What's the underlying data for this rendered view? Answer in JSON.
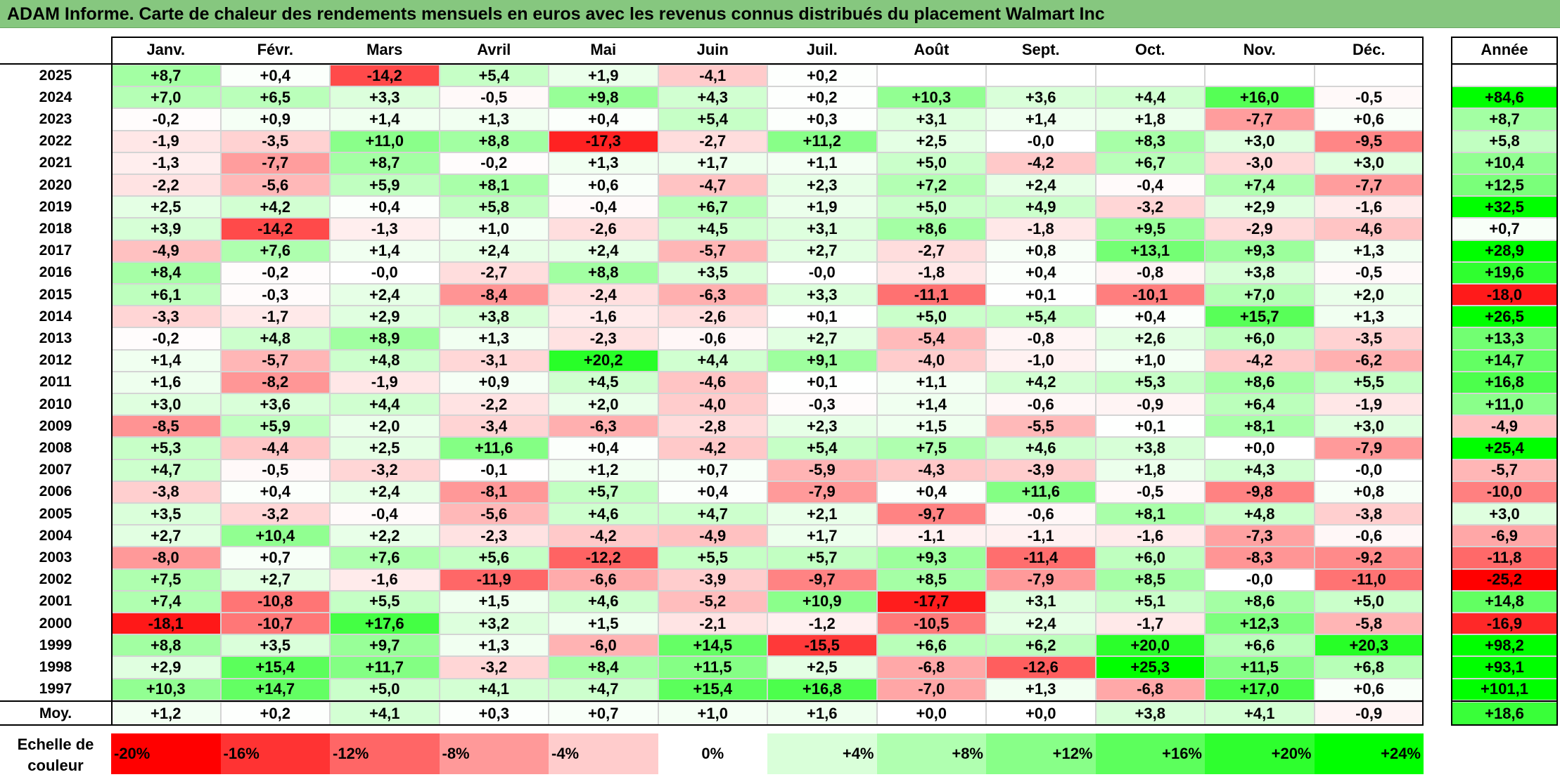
{
  "title": "ADAM Informe. Carte de chaleur des rendements mensuels en euros avec les revenus connus distribués du placement Walmart Inc",
  "chart_data": {
    "type": "heatmap",
    "title": "ADAM Informe. Carte de chaleur des rendements mensuels en euros avec les revenus connus distribués du placement Walmart Inc",
    "columns": [
      "Janv.",
      "Févr.",
      "Mars",
      "Avril",
      "Mai",
      "Juin",
      "Juil.",
      "Août",
      "Sept.",
      "Oct.",
      "Nov.",
      "Déc."
    ],
    "year_column": "Année",
    "rows": [
      {
        "label": "2025",
        "values": [
          "+8,7",
          "+0,4",
          "-14,2",
          "+5,4",
          "+1,9",
          "-4,1",
          "+0,2",
          "",
          "",
          "",
          "",
          ""
        ],
        "year": ""
      },
      {
        "label": "2024",
        "values": [
          "+7,0",
          "+6,5",
          "+3,3",
          "-0,5",
          "+9,8",
          "+4,3",
          "+0,2",
          "+10,3",
          "+3,6",
          "+4,4",
          "+16,0",
          "-0,5"
        ],
        "year": "+84,6"
      },
      {
        "label": "2023",
        "values": [
          "-0,2",
          "+0,9",
          "+1,4",
          "+1,3",
          "+0,4",
          "+5,4",
          "+0,3",
          "+3,1",
          "+1,4",
          "+1,8",
          "-7,7",
          "+0,6"
        ],
        "year": "+8,7"
      },
      {
        "label": "2022",
        "values": [
          "-1,9",
          "-3,5",
          "+11,0",
          "+8,8",
          "-17,3",
          "-2,7",
          "+11,2",
          "+2,5",
          "-0,0",
          "+8,3",
          "+3,0",
          "-9,5"
        ],
        "year": "+5,8"
      },
      {
        "label": "2021",
        "values": [
          "-1,3",
          "-7,7",
          "+8,7",
          "-0,2",
          "+1,3",
          "+1,7",
          "+1,1",
          "+5,0",
          "-4,2",
          "+6,7",
          "-3,0",
          "+3,0"
        ],
        "year": "+10,4"
      },
      {
        "label": "2020",
        "values": [
          "-2,2",
          "-5,6",
          "+5,9",
          "+8,1",
          "+0,6",
          "-4,7",
          "+2,3",
          "+7,2",
          "+2,4",
          "-0,4",
          "+7,4",
          "-7,7"
        ],
        "year": "+12,5"
      },
      {
        "label": "2019",
        "values": [
          "+2,5",
          "+4,2",
          "+0,4",
          "+5,8",
          "-0,4",
          "+6,7",
          "+1,9",
          "+5,0",
          "+4,9",
          "-3,2",
          "+2,9",
          "-1,6"
        ],
        "year": "+32,5"
      },
      {
        "label": "2018",
        "values": [
          "+3,9",
          "-14,2",
          "-1,3",
          "+1,0",
          "-2,6",
          "+4,5",
          "+3,1",
          "+8,6",
          "-1,8",
          "+9,5",
          "-2,9",
          "-4,6"
        ],
        "year": "+0,7"
      },
      {
        "label": "2017",
        "values": [
          "-4,9",
          "+7,6",
          "+1,4",
          "+2,4",
          "+2,4",
          "-5,7",
          "+2,7",
          "-2,7",
          "+0,8",
          "+13,1",
          "+9,3",
          "+1,3"
        ],
        "year": "+28,9"
      },
      {
        "label": "2016",
        "values": [
          "+8,4",
          "-0,2",
          "-0,0",
          "-2,7",
          "+8,8",
          "+3,5",
          "-0,0",
          "-1,8",
          "+0,4",
          "-0,8",
          "+3,8",
          "-0,5"
        ],
        "year": "+19,6"
      },
      {
        "label": "2015",
        "values": [
          "+6,1",
          "-0,3",
          "+2,4",
          "-8,4",
          "-2,4",
          "-6,3",
          "+3,3",
          "-11,1",
          "+0,1",
          "-10,1",
          "+7,0",
          "+2,0"
        ],
        "year": "-18,0"
      },
      {
        "label": "2014",
        "values": [
          "-3,3",
          "-1,7",
          "+2,9",
          "+3,8",
          "-1,6",
          "-2,6",
          "+0,1",
          "+5,0",
          "+5,4",
          "+0,4",
          "+15,7",
          "+1,3"
        ],
        "year": "+26,5"
      },
      {
        "label": "2013",
        "values": [
          "-0,2",
          "+4,8",
          "+8,9",
          "+1,3",
          "-2,3",
          "-0,6",
          "+2,7",
          "-5,4",
          "-0,8",
          "+2,6",
          "+6,0",
          "-3,5"
        ],
        "year": "+13,3"
      },
      {
        "label": "2012",
        "values": [
          "+1,4",
          "-5,7",
          "+4,8",
          "-3,1",
          "+20,2",
          "+4,4",
          "+9,1",
          "-4,0",
          "-1,0",
          "+1,0",
          "-4,2",
          "-6,2"
        ],
        "year": "+14,7"
      },
      {
        "label": "2011",
        "values": [
          "+1,6",
          "-8,2",
          "-1,9",
          "+0,9",
          "+4,5",
          "-4,6",
          "+0,1",
          "+1,1",
          "+4,2",
          "+5,3",
          "+8,6",
          "+5,5"
        ],
        "year": "+16,8"
      },
      {
        "label": "2010",
        "values": [
          "+3,0",
          "+3,6",
          "+4,4",
          "-2,2",
          "+2,0",
          "-4,0",
          "-0,3",
          "+1,4",
          "-0,6",
          "-0,9",
          "+6,4",
          "-1,9"
        ],
        "year": "+11,0"
      },
      {
        "label": "2009",
        "values": [
          "-8,5",
          "+5,9",
          "+2,0",
          "-3,4",
          "-6,3",
          "-2,8",
          "+2,3",
          "+1,5",
          "-5,5",
          "+0,1",
          "+8,1",
          "+3,0"
        ],
        "year": "-4,9"
      },
      {
        "label": "2008",
        "values": [
          "+5,3",
          "-4,4",
          "+2,5",
          "+11,6",
          "+0,4",
          "-4,2",
          "+5,4",
          "+7,5",
          "+4,6",
          "+3,8",
          "+0,0",
          "-7,9"
        ],
        "year": "+25,4"
      },
      {
        "label": "2007",
        "values": [
          "+4,7",
          "-0,5",
          "-3,2",
          "-0,1",
          "+1,2",
          "+0,7",
          "-5,9",
          "-4,3",
          "-3,9",
          "+1,8",
          "+4,3",
          "-0,0"
        ],
        "year": "-5,7"
      },
      {
        "label": "2006",
        "values": [
          "-3,8",
          "+0,4",
          "+2,4",
          "-8,1",
          "+5,7",
          "+0,4",
          "-7,9",
          "+0,4",
          "+11,6",
          "-0,5",
          "-9,8",
          "+0,8"
        ],
        "year": "-10,0"
      },
      {
        "label": "2005",
        "values": [
          "+3,5",
          "-3,2",
          "-0,4",
          "-5,6",
          "+4,6",
          "+4,7",
          "+2,1",
          "-9,7",
          "-0,6",
          "+8,1",
          "+4,8",
          "-3,8"
        ],
        "year": "+3,0"
      },
      {
        "label": "2004",
        "values": [
          "+2,7",
          "+10,4",
          "+2,2",
          "-2,3",
          "-4,2",
          "-4,9",
          "+1,7",
          "-1,1",
          "-1,1",
          "-1,6",
          "-7,3",
          "-0,6"
        ],
        "year": "-6,9"
      },
      {
        "label": "2003",
        "values": [
          "-8,0",
          "+0,7",
          "+7,6",
          "+5,6",
          "-12,2",
          "+5,5",
          "+5,7",
          "+9,3",
          "-11,4",
          "+6,0",
          "-8,3",
          "-9,2"
        ],
        "year": "-11,8"
      },
      {
        "label": "2002",
        "values": [
          "+7,5",
          "+2,7",
          "-1,6",
          "-11,9",
          "-6,6",
          "-3,9",
          "-9,7",
          "+8,5",
          "-7,9",
          "+8,5",
          "-0,0",
          "-11,0"
        ],
        "year": "-25,2"
      },
      {
        "label": "2001",
        "values": [
          "+7,4",
          "-10,8",
          "+5,5",
          "+1,5",
          "+4,6",
          "-5,2",
          "+10,9",
          "-17,7",
          "+3,1",
          "+5,1",
          "+8,6",
          "+5,0"
        ],
        "year": "+14,8"
      },
      {
        "label": "2000",
        "values": [
          "-18,1",
          "-10,7",
          "+17,6",
          "+3,2",
          "+1,5",
          "-2,1",
          "-1,2",
          "-10,5",
          "+2,4",
          "-1,7",
          "+12,3",
          "-5,8"
        ],
        "year": "-16,9"
      },
      {
        "label": "1999",
        "values": [
          "+8,8",
          "+3,5",
          "+9,7",
          "+1,3",
          "-6,0",
          "+14,5",
          "-15,5",
          "+6,6",
          "+6,2",
          "+20,0",
          "+6,6",
          "+20,3"
        ],
        "year": "+98,2"
      },
      {
        "label": "1998",
        "values": [
          "+2,9",
          "+15,4",
          "+11,7",
          "-3,2",
          "+8,4",
          "+11,5",
          "+2,5",
          "-6,8",
          "-12,6",
          "+25,3",
          "+11,5",
          "+6,8"
        ],
        "year": "+93,1"
      },
      {
        "label": "1997",
        "values": [
          "+10,3",
          "+14,7",
          "+5,0",
          "+4,1",
          "+4,7",
          "+15,4",
          "+16,8",
          "-7,0",
          "+1,3",
          "-6,8",
          "+17,0",
          "+0,6"
        ],
        "year": "+101,1"
      }
    ],
    "average": {
      "label": "Moy.",
      "values": [
        "+1,2",
        "+0,2",
        "+4,1",
        "+0,3",
        "+0,7",
        "+1,0",
        "+1,6",
        "+0,0",
        "+0,0",
        "+3,8",
        "+4,1",
        "-0,9"
      ],
      "year": "+18,6"
    },
    "scale": {
      "label": "Echelle de couleur",
      "stops": [
        {
          "label": "-20%",
          "color": "#ff0000"
        },
        {
          "label": "-16%",
          "color": "#ff3333"
        },
        {
          "label": "-12%",
          "color": "#ff6666"
        },
        {
          "label": "-8%",
          "color": "#ff9999"
        },
        {
          "label": "-4%",
          "color": "#ffcccc"
        },
        {
          "label": "0%",
          "color": "#ffffff"
        },
        {
          "label": "+4%",
          "color": "#d9ffd9"
        },
        {
          "label": "+8%",
          "color": "#b0ffb0"
        },
        {
          "label": "+12%",
          "color": "#88ff88"
        },
        {
          "label": "+16%",
          "color": "#5cff5c"
        },
        {
          "label": "+20%",
          "color": "#2eff2e"
        },
        {
          "label": "+24%",
          "color": "#00ff00"
        }
      ]
    }
  }
}
